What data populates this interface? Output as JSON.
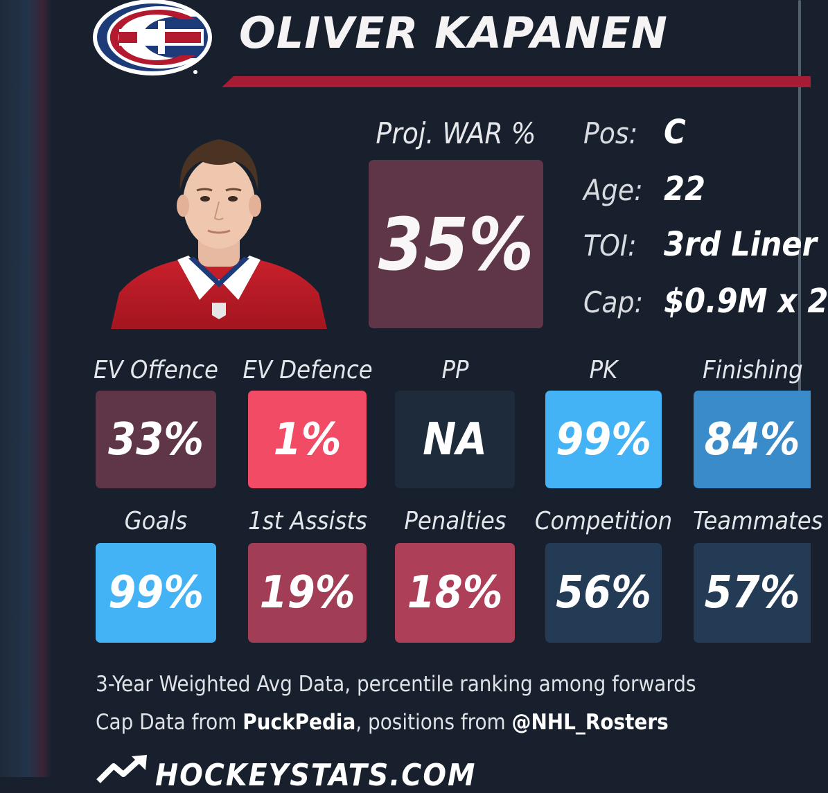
{
  "header": {
    "player_name": "OLIVER KAPANEN",
    "logo_icon": "canadiens-logo"
  },
  "war": {
    "label": "Proj. WAR %",
    "value": "35%",
    "color": "#5f3548"
  },
  "info": [
    {
      "label": "Pos:",
      "value": "C"
    },
    {
      "label": "Age:",
      "value": "22"
    },
    {
      "label": "TOI:",
      "value": "3rd Liner"
    },
    {
      "label": "Cap:",
      "value": "$0.9M x 2"
    }
  ],
  "stats_row1": [
    {
      "label": "EV Offence",
      "value": "33%",
      "color": "#5f3548"
    },
    {
      "label": "EV Defence",
      "value": "1%",
      "color": "#f24b66"
    },
    {
      "label": "PP",
      "value": "NA",
      "color": "#1e2b3b"
    },
    {
      "label": "PK",
      "value": "99%",
      "color": "#44b3f6"
    },
    {
      "label": "Finishing",
      "value": "84%",
      "color": "#3a8bc9"
    }
  ],
  "stats_row2": [
    {
      "label": "Goals",
      "value": "99%",
      "color": "#44b3f6"
    },
    {
      "label": "1st Assists",
      "value": "19%",
      "color": "#a13e56"
    },
    {
      "label": "Penalties",
      "value": "18%",
      "color": "#ad3f58"
    },
    {
      "label": "Competition",
      "value": "56%",
      "color": "#243b55"
    },
    {
      "label": "Teammates",
      "value": "57%",
      "color": "#243b55"
    }
  ],
  "footer": {
    "line1": "3-Year Weighted Avg Data, percentile ranking among forwards",
    "line2_prefix": "Cap Data from ",
    "line2_source": "PuckPedia",
    "line2_middle": ", positions from ",
    "line2_handle": "@NHL_Rosters",
    "brand": "HOCKEYSTATS.COM",
    "brand_icon": "trend-arrow-icon"
  }
}
